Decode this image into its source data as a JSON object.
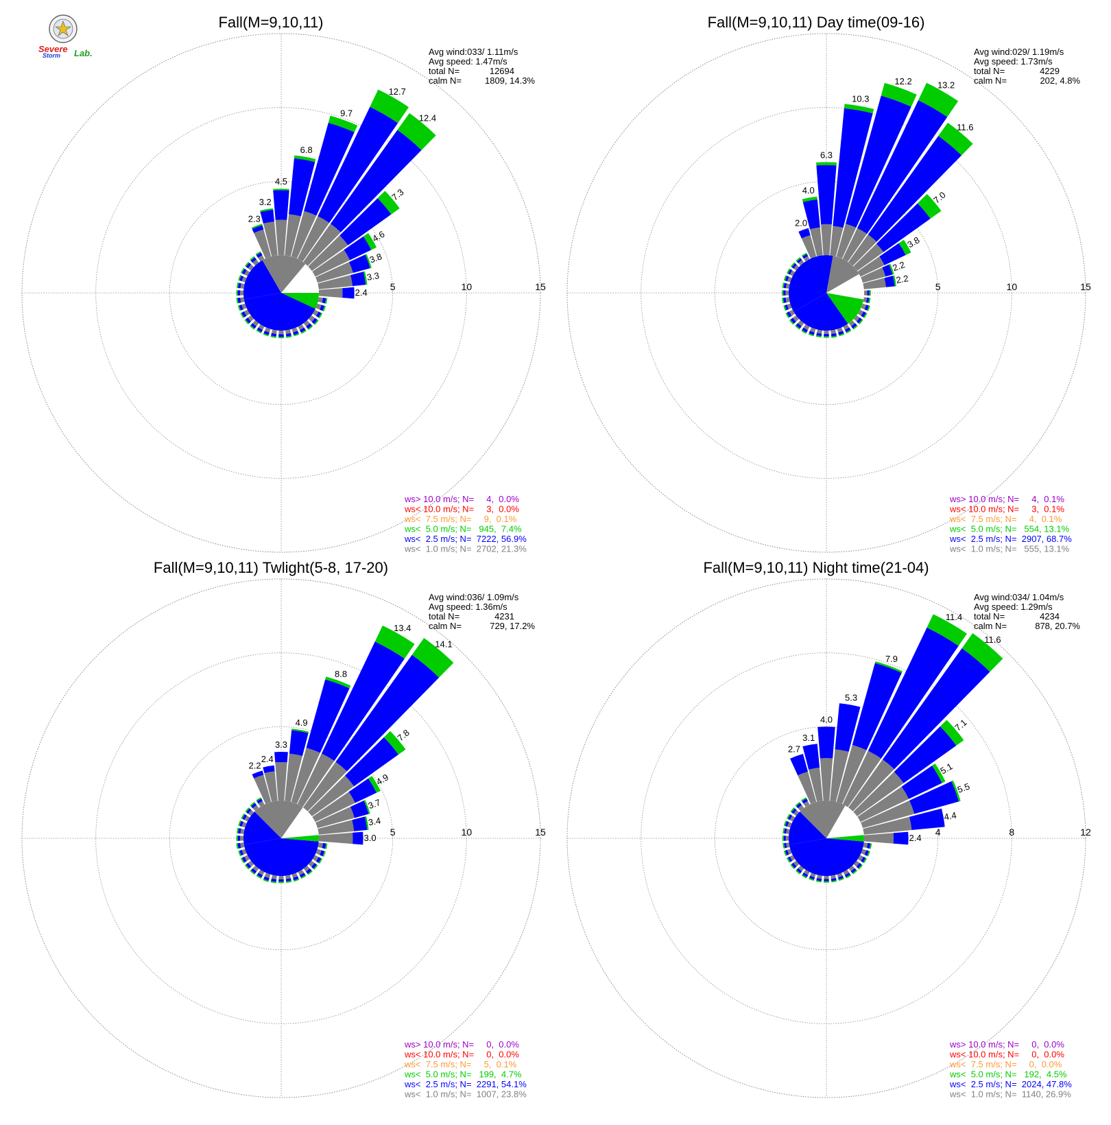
{
  "logo": {
    "word1": "Severe",
    "word2": "Storm",
    "word3": "Lab.",
    "colors": {
      "severe": "#e02020",
      "storm": "#1a3fd6",
      "lab": "#20a020"
    }
  },
  "colors": {
    "calm": "#ffffff",
    "ws_lt_1": "#808080",
    "ws_lt_2_5": "#0000ff",
    "ws_lt_5": "#00cc00",
    "ws_lt_7_5": "#ff9933",
    "ws_lt_10": "#ff0000",
    "ws_gt_10": "#9900cc",
    "grid": "#888888"
  },
  "chart_data": [
    {
      "type": "wind_rose",
      "title": "Fall(M=9,10,11)",
      "ring_labels": [
        "5",
        "10",
        "15"
      ],
      "rmax": 15,
      "info": {
        "avg_wind": "Avg wind:033/ 1.11m/s",
        "avg_speed": "Avg speed: 1.47m/s",
        "total_label": "total N=",
        "total_value": "12694",
        "calm_label": "calm N=",
        "calm_value": "1809,  14.3%"
      },
      "bars": [
        {
          "dir": 20,
          "g": 3.2,
          "b": 6.2,
          "gr": 0.5,
          "label": "9.7"
        },
        {
          "dir": 30,
          "g": 3.2,
          "b": 8.2,
          "gr": 1.3,
          "label": "12.7"
        },
        {
          "dir": 40,
          "g": 3.2,
          "b": 7.8,
          "gr": 1.4,
          "label": "12.4"
        },
        {
          "dir": 50,
          "g": 3.0,
          "b": 3.6,
          "gr": 0.7,
          "label": "7.3"
        },
        {
          "dir": 60,
          "g": 2.6,
          "b": 1.6,
          "gr": 0.4,
          "label": "4.6"
        },
        {
          "dir": 70,
          "g": 2.5,
          "b": 1.2,
          "gr": 0.1,
          "label": "3.8"
        },
        {
          "dir": 80,
          "g": 2.3,
          "b": 0.9,
          "gr": 0.1,
          "label": "3.3"
        },
        {
          "dir": 90,
          "g": 1.6,
          "b": 0.8,
          "gr": 0.0,
          "label": "2.4"
        },
        {
          "dir": 10,
          "g": 2.8,
          "b": 3.8,
          "gr": 0.2,
          "label": "6.8"
        },
        {
          "dir": 0,
          "g": 2.4,
          "b": 2.0,
          "gr": 0.1,
          "label": "4.5"
        },
        {
          "dir": -10,
          "g": 2.3,
          "b": 0.8,
          "gr": 0.1,
          "label": "3.2"
        },
        {
          "dir": -20,
          "g": 1.9,
          "b": 0.3,
          "gr": 0.1,
          "label": "2.3"
        }
      ],
      "small_bars": [
        {
          "dir": -30,
          "len": 1.8
        },
        {
          "dir": -40,
          "len": 1.6
        },
        {
          "dir": -50,
          "len": 1.5
        },
        {
          "dir": -60,
          "len": 1.5
        },
        {
          "dir": -70,
          "len": 1.4
        },
        {
          "dir": -80,
          "len": 1.4
        },
        {
          "dir": -90,
          "len": 1.4
        },
        {
          "dir": -100,
          "len": 1.5
        },
        {
          "dir": -110,
          "len": 1.5
        },
        {
          "dir": -120,
          "len": 1.6
        },
        {
          "dir": -130,
          "len": 1.6
        },
        {
          "dir": -140,
          "len": 1.6
        },
        {
          "dir": -150,
          "len": 1.5
        },
        {
          "dir": -160,
          "len": 1.5
        },
        {
          "dir": -170,
          "len": 1.5
        },
        {
          "dir": 180,
          "len": 1.5
        },
        {
          "dir": 170,
          "len": 1.5
        },
        {
          "dir": 160,
          "len": 1.5
        },
        {
          "dir": 150,
          "len": 1.6
        },
        {
          "dir": 140,
          "len": 1.7
        },
        {
          "dir": 130,
          "len": 1.8
        },
        {
          "dir": 120,
          "len": 1.7
        },
        {
          "dir": 110,
          "len": 1.8
        },
        {
          "dir": 100,
          "len": 1.8
        }
      ],
      "center": {
        "gray_from": -30,
        "gray_to": 40,
        "blue_from": -100,
        "blue_to": -30,
        "blue_from2": 100,
        "blue_to2": 260,
        "green_from": 90,
        "green_to": 115
      },
      "legend": [
        {
          "text": "ws> 10.0 m/s; N=     4,  0.0%",
          "color": "#9900cc"
        },
        {
          "text": "ws< 10.0 m/s; N=     3,  0.0%",
          "color": "#ff0000"
        },
        {
          "text": "ws<  7.5 m/s; N=     9,  0.1%",
          "color": "#ff9933"
        },
        {
          "text": "ws<  5.0 m/s; N=   945,  7.4%",
          "color": "#00cc00"
        },
        {
          "text": "ws<  2.5 m/s; N=  7222, 56.9%",
          "color": "#0000ff"
        },
        {
          "text": "ws<  1.0 m/s; N=  2702, 21.3%",
          "color": "#808080"
        }
      ]
    },
    {
      "type": "wind_rose",
      "title": "Fall(M=9,10,11) Day time(09-16)",
      "ring_labels": [
        "5",
        "10",
        "15"
      ],
      "rmax": 15,
      "info": {
        "avg_wind": "Avg wind:029/ 1.19m/s",
        "avg_speed": "Avg speed: 1.73m/s",
        "total_label": "total N=",
        "total_value": "4229",
        "calm_label": "calm N=",
        "calm_value": "202,   4.8%"
      },
      "bars": [
        {
          "dir": 10,
          "g": 2.0,
          "b": 8.0,
          "gr": 0.3,
          "label": "10.3"
        },
        {
          "dir": 20,
          "g": 2.3,
          "b": 9.0,
          "gr": 0.9,
          "label": "12.2"
        },
        {
          "dir": 30,
          "g": 2.3,
          "b": 9.6,
          "gr": 1.3,
          "label": "13.2"
        },
        {
          "dir": 40,
          "g": 2.3,
          "b": 8.2,
          "gr": 1.1,
          "label": "11.6"
        },
        {
          "dir": 50,
          "g": 2.2,
          "b": 3.9,
          "gr": 0.9,
          "label": "7.0"
        },
        {
          "dir": 60,
          "g": 1.8,
          "b": 1.6,
          "gr": 0.4,
          "label": "3.8"
        },
        {
          "dir": 70,
          "g": 1.6,
          "b": 0.5,
          "gr": 0.1,
          "label": "2.2"
        },
        {
          "dir": 80,
          "g": 1.5,
          "b": 0.6,
          "gr": 0.1,
          "label": "2.2"
        },
        {
          "dir": 0,
          "g": 2.1,
          "b": 4.0,
          "gr": 0.2,
          "label": "6.3"
        },
        {
          "dir": -10,
          "g": 1.9,
          "b": 1.9,
          "gr": 0.2,
          "label": "4.0"
        },
        {
          "dir": -20,
          "g": 1.5,
          "b": 0.5,
          "gr": 0.0,
          "label": "2.0"
        }
      ],
      "small_bars": [
        {
          "dir": -30,
          "len": 1.4
        },
        {
          "dir": -40,
          "len": 1.3
        },
        {
          "dir": -50,
          "len": 1.3
        },
        {
          "dir": -60,
          "len": 1.3
        },
        {
          "dir": -70,
          "len": 1.3
        },
        {
          "dir": -80,
          "len": 1.3
        },
        {
          "dir": -90,
          "len": 1.3
        },
        {
          "dir": -100,
          "len": 1.4
        },
        {
          "dir": -110,
          "len": 1.4
        },
        {
          "dir": -120,
          "len": 1.6
        },
        {
          "dir": -130,
          "len": 1.7
        },
        {
          "dir": -140,
          "len": 1.6
        },
        {
          "dir": -150,
          "len": 1.6
        },
        {
          "dir": -160,
          "len": 1.5
        },
        {
          "dir": -170,
          "len": 1.4
        },
        {
          "dir": 180,
          "len": 1.4
        },
        {
          "dir": 170,
          "len": 1.5
        },
        {
          "dir": 160,
          "len": 1.5
        },
        {
          "dir": 150,
          "len": 1.5
        },
        {
          "dir": 140,
          "len": 1.6
        },
        {
          "dir": 130,
          "len": 1.6
        },
        {
          "dir": 120,
          "len": 1.6
        },
        {
          "dir": 110,
          "len": 1.6
        },
        {
          "dir": 100,
          "len": 1.3
        },
        {
          "dir": 90,
          "len": 1.3
        }
      ],
      "center": {
        "gray_from": 10,
        "gray_to": 60,
        "blue_from": -120,
        "blue_to": 10,
        "blue_from2": 145,
        "blue_to2": 240,
        "green_from": 100,
        "green_to": 145
      },
      "legend": [
        {
          "text": "ws> 10.0 m/s; N=     4,  0.1%",
          "color": "#9900cc"
        },
        {
          "text": "ws< 10.0 m/s; N=     3,  0.1%",
          "color": "#ff0000"
        },
        {
          "text": "ws<  7.5 m/s; N=     4,  0.1%",
          "color": "#ff9933"
        },
        {
          "text": "ws<  5.0 m/s; N=   554, 13.1%",
          "color": "#00cc00"
        },
        {
          "text": "ws<  2.5 m/s; N=  2907, 68.7%",
          "color": "#0000ff"
        },
        {
          "text": "ws<  1.0 m/s; N=   555, 13.1%",
          "color": "#808080"
        }
      ]
    },
    {
      "type": "wind_rose",
      "title": "Fall(M=9,10,11) Twlight(5-8, 17-20)",
      "ring_labels": [
        "5",
        "10",
        "15"
      ],
      "rmax": 15,
      "info": {
        "avg_wind": "Avg wind:036/ 1.09m/s",
        "avg_speed": "Avg speed: 1.36m/s",
        "total_label": "total N=",
        "total_value": "4231",
        "calm_label": "calm N=",
        "calm_value": "729,  17.2%"
      },
      "bars": [
        {
          "dir": 20,
          "g": 3.8,
          "b": 4.8,
          "gr": 0.2,
          "label": "8.8"
        },
        {
          "dir": 30,
          "g": 3.8,
          "b": 8.4,
          "gr": 1.2,
          "label": "13.4"
        },
        {
          "dir": 40,
          "g": 3.8,
          "b": 8.9,
          "gr": 1.4,
          "label": "14.1"
        },
        {
          "dir": 50,
          "g": 3.5,
          "b": 3.7,
          "gr": 0.6,
          "label": "7.8"
        },
        {
          "dir": 60,
          "g": 3.0,
          "b": 1.6,
          "gr": 0.3,
          "label": "4.9"
        },
        {
          "dir": 70,
          "g": 2.6,
          "b": 1.0,
          "gr": 0.1,
          "label": "3.7"
        },
        {
          "dir": 80,
          "g": 2.4,
          "b": 0.9,
          "gr": 0.1,
          "label": "3.4"
        },
        {
          "dir": 90,
          "g": 2.3,
          "b": 0.7,
          "gr": 0.0,
          "label": "3.0"
        },
        {
          "dir": 10,
          "g": 3.2,
          "b": 1.6,
          "gr": 0.1,
          "label": "4.9"
        },
        {
          "dir": 0,
          "g": 2.6,
          "b": 0.7,
          "gr": 0.0,
          "label": "3.3"
        },
        {
          "dir": -10,
          "g": 2.0,
          "b": 0.4,
          "gr": 0.0,
          "label": "2.4"
        },
        {
          "dir": -20,
          "g": 1.9,
          "b": 0.3,
          "gr": 0.0,
          "label": "2.2"
        }
      ],
      "small_bars": [
        {
          "dir": -30,
          "len": 1.6
        },
        {
          "dir": -40,
          "len": 1.5
        },
        {
          "dir": -50,
          "len": 1.4
        },
        {
          "dir": -60,
          "len": 1.4
        },
        {
          "dir": -70,
          "len": 1.4
        },
        {
          "dir": -80,
          "len": 1.4
        },
        {
          "dir": -90,
          "len": 1.4
        },
        {
          "dir": -100,
          "len": 1.5
        },
        {
          "dir": -110,
          "len": 1.4
        },
        {
          "dir": -120,
          "len": 1.5
        },
        {
          "dir": -130,
          "len": 1.5
        },
        {
          "dir": -140,
          "len": 1.5
        },
        {
          "dir": -150,
          "len": 1.5
        },
        {
          "dir": -160,
          "len": 1.6
        },
        {
          "dir": -170,
          "len": 1.5
        },
        {
          "dir": 180,
          "len": 1.4
        },
        {
          "dir": 170,
          "len": 1.4
        },
        {
          "dir": 160,
          "len": 1.5
        },
        {
          "dir": 150,
          "len": 1.5
        },
        {
          "dir": 140,
          "len": 1.6
        },
        {
          "dir": 130,
          "len": 1.6
        },
        {
          "dir": 120,
          "len": 1.7
        },
        {
          "dir": 110,
          "len": 1.8
        },
        {
          "dir": 100,
          "len": 1.8
        }
      ],
      "center": {
        "gray_from": -45,
        "gray_to": 35,
        "blue_from": -100,
        "blue_to": -45,
        "blue_from2": 95,
        "blue_to2": 260,
        "green_from": 85,
        "green_to": 95
      },
      "legend": [
        {
          "text": "ws> 10.0 m/s; N=     0,  0.0%",
          "color": "#9900cc"
        },
        {
          "text": "ws< 10.0 m/s; N=     0,  0.0%",
          "color": "#ff0000"
        },
        {
          "text": "ws<  7.5 m/s; N=     5,  0.1%",
          "color": "#ff9933"
        },
        {
          "text": "ws<  5.0 m/s; N=   199,  4.7%",
          "color": "#00cc00"
        },
        {
          "text": "ws<  2.5 m/s; N=  2291, 54.1%",
          "color": "#0000ff"
        },
        {
          "text": "ws<  1.0 m/s; N=  1007, 23.8%",
          "color": "#808080"
        }
      ]
    },
    {
      "type": "wind_rose",
      "title": "Fall(M=9,10,11) Night time(21-04)",
      "ring_labels": [
        "4",
        "8",
        "12"
      ],
      "rmax": 12,
      "info": {
        "avg_wind": "Avg wind:034/ 1.04m/s",
        "avg_speed": "Avg speed: 1.29m/s",
        "total_label": "total N=",
        "total_value": "4234",
        "calm_label": "calm N=",
        "calm_value": "878,  20.7%"
      },
      "bars": [
        {
          "dir": 20,
          "g": 3.2,
          "b": 4.6,
          "gr": 0.1,
          "label": "7.9"
        },
        {
          "dir": 30,
          "g": 3.2,
          "b": 7.4,
          "gr": 0.8,
          "label": "11.4"
        },
        {
          "dir": 40,
          "g": 3.2,
          "b": 7.4,
          "gr": 1.0,
          "label": "11.6"
        },
        {
          "dir": 50,
          "g": 3.1,
          "b": 3.5,
          "gr": 0.5,
          "label": "7.1"
        },
        {
          "dir": 60,
          "g": 2.9,
          "b": 2.0,
          "gr": 0.2,
          "label": "5.1"
        },
        {
          "dir": 70,
          "g": 2.9,
          "b": 2.5,
          "gr": 0.1,
          "label": "5.5"
        },
        {
          "dir": 80,
          "g": 2.6,
          "b": 1.8,
          "gr": 0.0,
          "label": "4.4"
        },
        {
          "dir": 90,
          "g": 1.6,
          "b": 0.8,
          "gr": 0.0,
          "label": "2.4"
        },
        {
          "dir": 10,
          "g": 2.8,
          "b": 2.5,
          "gr": 0.0,
          "label": "5.3"
        },
        {
          "dir": 0,
          "g": 2.3,
          "b": 1.7,
          "gr": 0.0,
          "label": "4.0"
        },
        {
          "dir": -10,
          "g": 1.8,
          "b": 1.3,
          "gr": 0.0,
          "label": "3.1"
        },
        {
          "dir": -20,
          "g": 1.7,
          "b": 1.0,
          "gr": 0.0,
          "label": "2.7"
        }
      ],
      "small_bars": [
        {
          "dir": -30,
          "len": 1.6
        },
        {
          "dir": -40,
          "len": 1.5
        },
        {
          "dir": -50,
          "len": 1.4
        },
        {
          "dir": -60,
          "len": 1.3
        },
        {
          "dir": -70,
          "len": 1.3
        },
        {
          "dir": -80,
          "len": 1.2
        },
        {
          "dir": -90,
          "len": 1.2
        },
        {
          "dir": -100,
          "len": 1.2
        },
        {
          "dir": -110,
          "len": 1.3
        },
        {
          "dir": -120,
          "len": 1.3
        },
        {
          "dir": -130,
          "len": 1.4
        },
        {
          "dir": -140,
          "len": 1.4
        },
        {
          "dir": -150,
          "len": 1.4
        },
        {
          "dir": -160,
          "len": 1.3
        },
        {
          "dir": -170,
          "len": 1.3
        },
        {
          "dir": 180,
          "len": 1.3
        },
        {
          "dir": 170,
          "len": 1.3
        },
        {
          "dir": 160,
          "len": 1.3
        },
        {
          "dir": 150,
          "len": 1.4
        },
        {
          "dir": 140,
          "len": 1.4
        },
        {
          "dir": 130,
          "len": 1.5
        },
        {
          "dir": 120,
          "len": 1.5
        },
        {
          "dir": 110,
          "len": 1.6
        },
        {
          "dir": 100,
          "len": 1.6
        }
      ],
      "center": {
        "gray_from": -45,
        "gray_to": 30,
        "blue_from": -100,
        "blue_to": -45,
        "blue_from2": 95,
        "blue_to2": 260,
        "green_from": 85,
        "green_to": 95
      },
      "legend": [
        {
          "text": "ws> 10.0 m/s; N=     0,  0.0%",
          "color": "#9900cc"
        },
        {
          "text": "ws< 10.0 m/s; N=     0,  0.0%",
          "color": "#ff0000"
        },
        {
          "text": "ws<  7.5 m/s; N=     0,  0.0%",
          "color": "#ff9933"
        },
        {
          "text": "ws<  5.0 m/s; N=   192,  4.5%",
          "color": "#00cc00"
        },
        {
          "text": "ws<  2.5 m/s; N=  2024, 47.8%",
          "color": "#0000ff"
        },
        {
          "text": "ws<  1.0 m/s; N=  1140, 26.9%",
          "color": "#808080"
        }
      ]
    }
  ]
}
